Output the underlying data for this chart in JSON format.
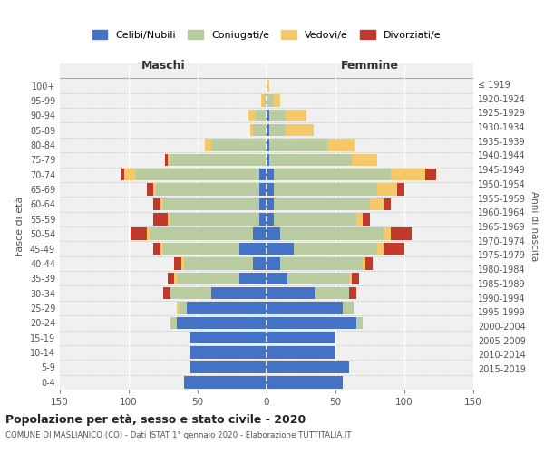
{
  "age_groups": [
    "0-4",
    "5-9",
    "10-14",
    "15-19",
    "20-24",
    "25-29",
    "30-34",
    "35-39",
    "40-44",
    "45-49",
    "50-54",
    "55-59",
    "60-64",
    "65-69",
    "70-74",
    "75-79",
    "80-84",
    "85-89",
    "90-94",
    "95-99",
    "100+"
  ],
  "birth_years": [
    "2015-2019",
    "2010-2014",
    "2005-2009",
    "2000-2004",
    "1995-1999",
    "1990-1994",
    "1985-1989",
    "1980-1984",
    "1975-1979",
    "1970-1974",
    "1965-1969",
    "1960-1964",
    "1955-1959",
    "1950-1954",
    "1945-1949",
    "1940-1944",
    "1935-1939",
    "1930-1934",
    "1925-1929",
    "1920-1924",
    "≤ 1919"
  ],
  "males": {
    "celibi": [
      60,
      55,
      55,
      55,
      65,
      58,
      40,
      20,
      10,
      20,
      10,
      5,
      5,
      5,
      5,
      0,
      0,
      0,
      0,
      0,
      0
    ],
    "coniugati": [
      0,
      0,
      0,
      0,
      5,
      5,
      30,
      45,
      50,
      55,
      75,
      65,
      70,
      75,
      90,
      70,
      40,
      10,
      8,
      2,
      0
    ],
    "vedovi": [
      0,
      0,
      0,
      0,
      0,
      2,
      0,
      2,
      2,
      2,
      2,
      2,
      2,
      2,
      8,
      2,
      5,
      2,
      5,
      2,
      0
    ],
    "divorziati": [
      0,
      0,
      0,
      0,
      0,
      0,
      5,
      5,
      5,
      5,
      12,
      10,
      5,
      5,
      2,
      2,
      0,
      0,
      0,
      0,
      0
    ]
  },
  "females": {
    "nubili": [
      55,
      60,
      50,
      50,
      65,
      55,
      35,
      15,
      10,
      20,
      10,
      5,
      5,
      5,
      5,
      2,
      2,
      2,
      2,
      0,
      0
    ],
    "coniugate": [
      0,
      0,
      0,
      0,
      5,
      8,
      25,
      45,
      60,
      60,
      75,
      60,
      70,
      75,
      85,
      60,
      42,
      12,
      12,
      5,
      0
    ],
    "vedove": [
      0,
      0,
      0,
      0,
      0,
      0,
      0,
      2,
      2,
      5,
      5,
      5,
      10,
      15,
      25,
      18,
      20,
      20,
      15,
      5,
      2
    ],
    "divorziate": [
      0,
      0,
      0,
      0,
      0,
      0,
      5,
      5,
      5,
      15,
      15,
      5,
      5,
      5,
      8,
      0,
      0,
      0,
      0,
      0,
      0
    ]
  },
  "colors": {
    "celibi": "#4472c4",
    "coniugati": "#b8cca0",
    "vedovi": "#f5c96a",
    "divorziati": "#c0392b"
  },
  "xlim": 150,
  "title": "Popolazione per età, sesso e stato civile - 2020",
  "subtitle": "COMUNE DI MASLIANICO (CO) - Dati ISTAT 1° gennaio 2020 - Elaborazione TUTTITALIA.IT",
  "ylabel_left": "Fasce di età",
  "ylabel_right": "Anni di nascita",
  "legend_labels": [
    "Celibi/Nubili",
    "Coniugati/e",
    "Vedovi/e",
    "Divorziati/e"
  ],
  "bg_color": "#f0f0f0"
}
